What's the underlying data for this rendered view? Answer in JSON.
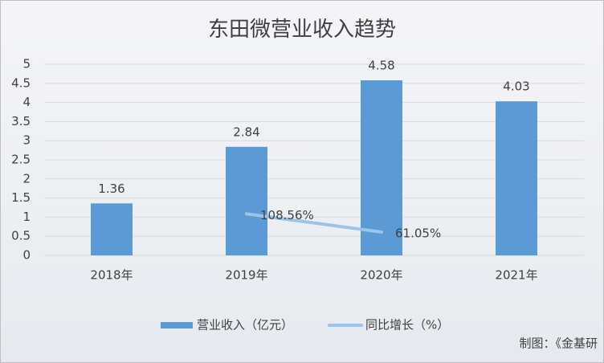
{
  "chart_data": {
    "type": "bar",
    "title": "东田微营业收入趋势",
    "categories": [
      "2018年",
      "2019年",
      "2020年",
      "2021年"
    ],
    "series": [
      {
        "name": "营业收入（亿元）",
        "color": "#5b9bd5",
        "values": [
          1.36,
          2.84,
          4.58,
          4.03
        ]
      },
      {
        "name": "同比增长（%）",
        "type": "line",
        "axis": "y2",
        "color": "#9dc3e6",
        "values": [
          null,
          108.56,
          61.05,
          null
        ],
        "value_labels": [
          null,
          "108.56%",
          "61.05%",
          null
        ]
      }
    ],
    "ylim": [
      0,
      5
    ],
    "yticks": [
      0,
      0.5,
      1,
      1.5,
      2,
      2.5,
      3,
      3.5,
      4,
      4.5,
      5
    ],
    "y2lim": [
      0,
      500
    ],
    "grid": true,
    "legend": "bottom",
    "source": "制图：《金基研"
  }
}
